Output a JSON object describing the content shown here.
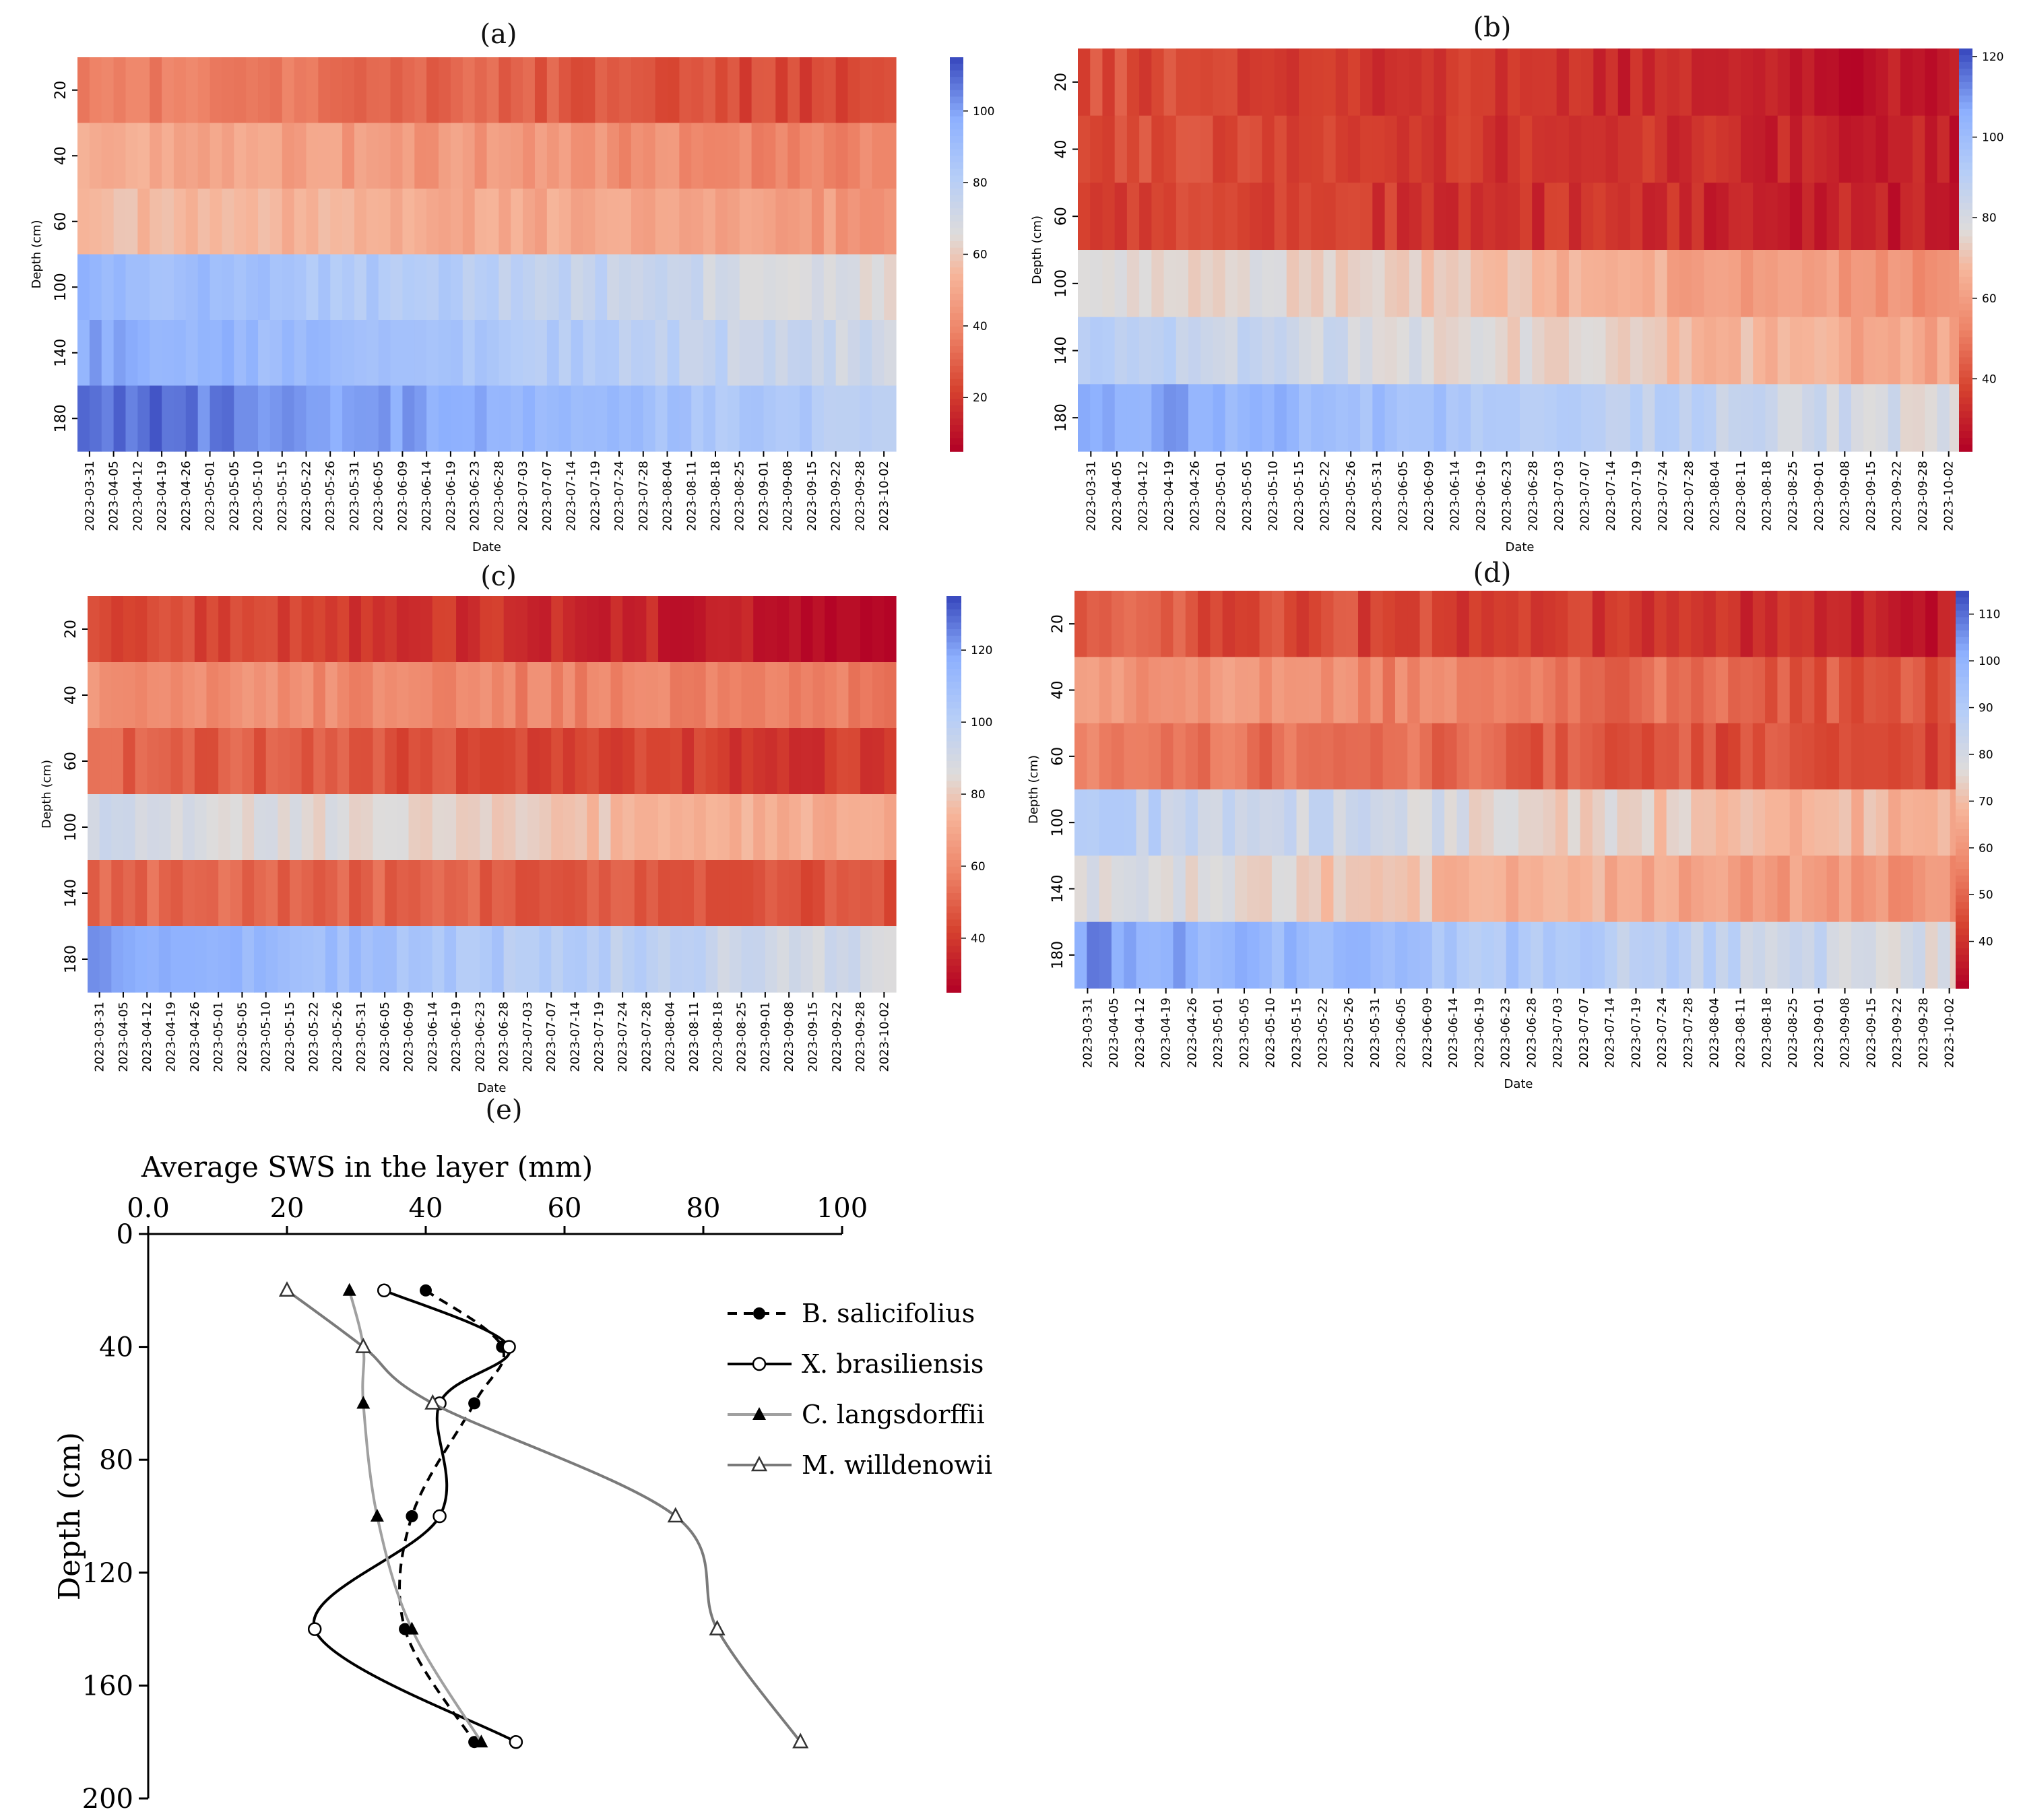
{
  "figure_labels": {
    "a": "(a)",
    "b": "(b)",
    "c": "(c)",
    "d": "(d)",
    "e": "(e)"
  },
  "heatmap_common": {
    "x_label": "Date",
    "y_label": "Depth (cm)",
    "depths": [
      "20",
      "40",
      "60",
      "100",
      "140",
      "180"
    ],
    "dates": [
      "2023-03-31",
      "2023-04-05",
      "2023-04-12",
      "2023-04-19",
      "2023-04-26",
      "2023-05-01",
      "2023-05-05",
      "2023-05-10",
      "2023-05-15",
      "2023-05-22",
      "2023-05-26",
      "2023-05-31",
      "2023-06-05",
      "2023-06-09",
      "2023-06-14",
      "2023-06-19",
      "2023-06-23",
      "2023-06-28",
      "2023-07-03",
      "2023-07-07",
      "2023-07-14",
      "2023-07-19",
      "2023-07-24",
      "2023-07-28",
      "2023-08-04",
      "2023-08-11",
      "2023-08-18",
      "2023-08-25",
      "2023-09-01",
      "2023-09-08",
      "2023-09-15",
      "2023-09-22",
      "2023-09-28",
      "2023-10-02"
    ]
  },
  "colors": {
    "low": "#b40426",
    "mid": "#dddddd",
    "high": "#3b4cc0",
    "line_black": "#000000",
    "line_gray": "#999999",
    "line_darkgray": "#777777"
  },
  "chart_data": [
    {
      "id": "a",
      "type": "heatmap",
      "title": "(a)",
      "colorbar": {
        "min": 5,
        "max": 115,
        "ticks": [
          20,
          40,
          60,
          80,
          100
        ]
      },
      "depths": [
        20,
        40,
        60,
        100,
        140,
        180
      ],
      "layer_values": {
        "20": [
          38,
          20
        ],
        "40": [
          50,
          38
        ],
        "60": [
          55,
          45
        ],
        "100": [
          95,
          65
        ],
        "140": [
          100,
          70
        ],
        "180": [
          112,
          80
        ]
      }
    },
    {
      "id": "b",
      "type": "heatmap",
      "title": "(b)",
      "colorbar": {
        "min": 22,
        "max": 122,
        "ticks": [
          40,
          60,
          80,
          100,
          120
        ]
      },
      "depths": [
        20,
        40,
        60,
        100,
        140,
        180
      ],
      "layer_values": {
        "20": [
          40,
          25
        ],
        "40": [
          40,
          28
        ],
        "60": [
          38,
          28
        ],
        "100": [
          80,
          55
        ],
        "140": [
          90,
          60
        ],
        "180": [
          110,
          78
        ]
      }
    },
    {
      "id": "c",
      "type": "heatmap",
      "title": "(c)",
      "colorbar": {
        "min": 25,
        "max": 135,
        "ticks": [
          40,
          60,
          80,
          100,
          120
        ]
      },
      "depths": [
        20,
        40,
        60,
        100,
        140,
        180
      ],
      "layer_values": {
        "20": [
          45,
          28
        ],
        "40": [
          62,
          55
        ],
        "60": [
          50,
          38
        ],
        "100": [
          90,
          70
        ],
        "140": [
          52,
          45
        ],
        "180": [
          120,
          88
        ]
      }
    },
    {
      "id": "d",
      "type": "heatmap",
      "title": "(d)",
      "colorbar": {
        "min": 30,
        "max": 115,
        "ticks": [
          40,
          50,
          60,
          70,
          80,
          90,
          100,
          110
        ]
      },
      "depths": [
        20,
        40,
        60,
        100,
        140,
        180
      ],
      "layer_values": {
        "20": [
          48,
          34
        ],
        "40": [
          62,
          45
        ],
        "60": [
          55,
          42
        ],
        "100": [
          88,
          65
        ],
        "140": [
          78,
          58
        ],
        "180": [
          105,
          78
        ]
      }
    },
    {
      "id": "e",
      "type": "line",
      "title": "(e)",
      "xlabel": "Average SWS in the layer (mm)",
      "ylabel": "Depth (cm)",
      "xlim": [
        0,
        100
      ],
      "ylim": [
        0,
        200
      ],
      "x_ticks": [
        "0.0",
        "20",
        "40",
        "60",
        "80",
        "100"
      ],
      "y_ticks": [
        "0",
        "40",
        "80",
        "120",
        "160",
        "200"
      ],
      "depths": [
        20,
        40,
        60,
        100,
        140,
        180
      ],
      "series": [
        {
          "name": "B. salicifolius",
          "style": "dashed",
          "marker": "filled-circle",
          "values": [
            40,
            51,
            47,
            38,
            37,
            47
          ]
        },
        {
          "name": "X. brasiliensis",
          "style": "solid",
          "marker": "open-circle",
          "values": [
            34,
            52,
            42,
            42,
            24,
            53
          ]
        },
        {
          "name": "C. langsdorffii",
          "style": "solid-gray",
          "marker": "filled-triangle",
          "values": [
            29,
            31,
            31,
            33,
            38,
            48
          ]
        },
        {
          "name": "M. willdenowii",
          "style": "solid-darkgray",
          "marker": "open-triangle",
          "values": [
            20,
            31,
            41,
            76,
            82,
            94
          ]
        }
      ]
    }
  ]
}
